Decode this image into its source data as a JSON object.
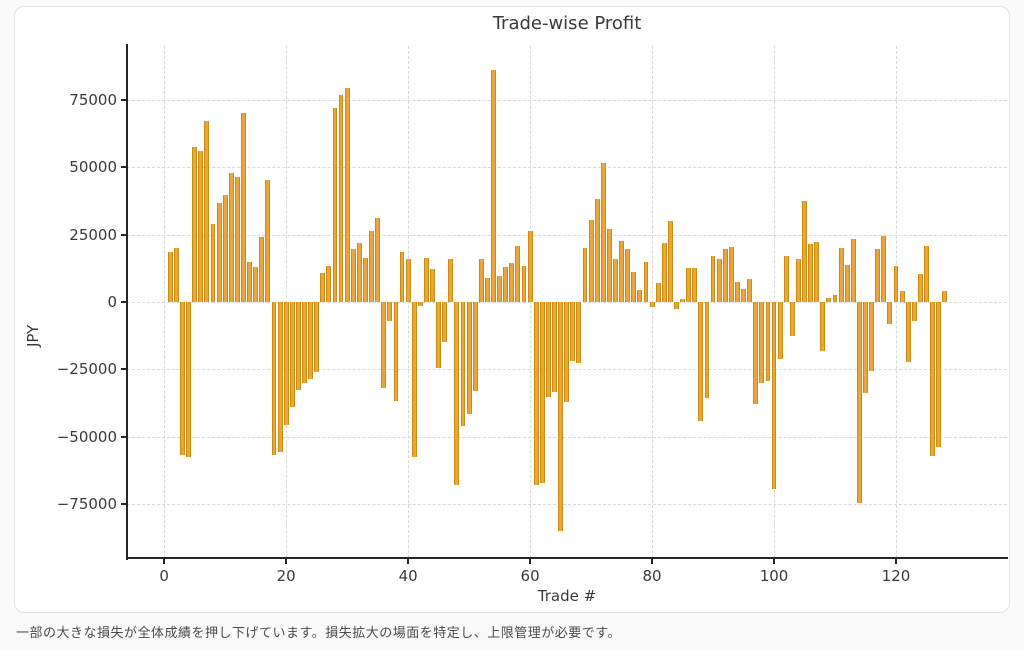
{
  "page": {
    "caption": "一部の大きな損失が全体成績を押し下げています。損失拡大の場面を特定し、上限管理が必要です。"
  },
  "chart_data": {
    "type": "bar",
    "title": "Trade-wise Profit",
    "xlabel": "Trade #",
    "ylabel": "JPY",
    "legend": "none",
    "grid": true,
    "bar_color": "#EAA53C",
    "bar_edge_color": "#CD8C10",
    "x_ticks": [
      0,
      20,
      40,
      60,
      80,
      100,
      120
    ],
    "y_ticks": [
      75000,
      50000,
      25000,
      0,
      -25000,
      -50000,
      -75000
    ],
    "xlim": [
      -6.1,
      138.2
    ],
    "ylim": [
      -95000,
      95000
    ],
    "x_start": 1,
    "bar_width": 0.8,
    "values": [
      18600,
      20100,
      -56700,
      -57600,
      57700,
      56200,
      67200,
      29000,
      36800,
      39800,
      47900,
      46500,
      70200,
      15000,
      13000,
      24000,
      45300,
      -56700,
      -55500,
      -45500,
      -38900,
      -32700,
      -30100,
      -28600,
      -25900,
      10700,
      13200,
      72000,
      76800,
      79300,
      19800,
      21800,
      16300,
      26500,
      31300,
      -31800,
      -6900,
      -36700,
      18700,
      15900,
      -57600,
      -1500,
      16300,
      12200,
      -24400,
      -14900,
      15900,
      -68000,
      -46000,
      -41500,
      -33200,
      16000,
      8900,
      86000,
      9600,
      12900,
      14500,
      20700,
      13200,
      26200,
      -67900,
      -67100,
      -35100,
      -33300,
      -85000,
      -37000,
      -21900,
      -22800,
      19900,
      30500,
      38400,
      51500,
      27100,
      16000,
      22500,
      19500,
      11300,
      4600,
      15000,
      -1800,
      7000,
      21900,
      30200,
      -2500,
      1000,
      12600,
      12600,
      -44300,
      -35500,
      17000,
      15800,
      19700,
      20300,
      7600,
      4900,
      8400,
      -38000,
      -30200,
      -29400,
      -69500,
      -21000,
      17200,
      -12700,
      15900,
      37400,
      21500,
      22400,
      -18000,
      1500,
      2700,
      20200,
      13900,
      23400,
      -74500,
      -33700,
      -25700,
      19700,
      24500,
      -8000,
      13500,
      4100,
      -22100,
      -7200,
      10300,
      20900,
      -57200,
      -53800,
      4100
    ]
  }
}
